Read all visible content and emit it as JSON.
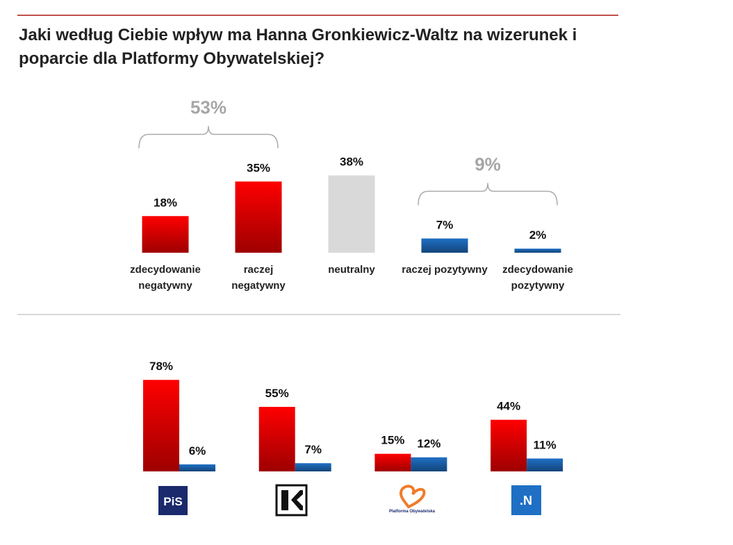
{
  "title": "Jaki według Ciebie wpływ ma Hanna Gronkiewicz-Waltz na wizerunek i poparcie dla Platformy Obywatelskiej?",
  "chart_data": [
    {
      "type": "bar",
      "categories": [
        "zdecydowanie negatywny",
        "raczej negatywny",
        "neutralny",
        "raczej pozytywny",
        "zdecydowanie pozytywny"
      ],
      "values": [
        18,
        35,
        38,
        7,
        2
      ],
      "value_labels": [
        "18%",
        "35%",
        "38%",
        "7%",
        "2%"
      ],
      "colors": [
        "#ff0000",
        "#ff0000",
        "#d9d9d9",
        "#1f6fc5",
        "#1f6fc5"
      ],
      "annotations": [
        {
          "value": 53,
          "label": "53%",
          "span": [
            0,
            1
          ]
        },
        {
          "value": 9,
          "label": "9%",
          "span": [
            3,
            4
          ]
        }
      ]
    },
    {
      "type": "grouped_bar",
      "categories": [
        "PiS",
        null,
        "Platforma Obywatelska",
        ".N"
      ],
      "series": [
        {
          "color": "#ff0000",
          "values": [
            78,
            55,
            15,
            44
          ],
          "value_labels": [
            "78%",
            "55%",
            "15%",
            "44%"
          ]
        },
        {
          "color": "#1f6fc5",
          "values": [
            6,
            7,
            12,
            11
          ],
          "value_labels": [
            "6%",
            "7%",
            "12%",
            "11%"
          ]
        }
      ]
    }
  ]
}
